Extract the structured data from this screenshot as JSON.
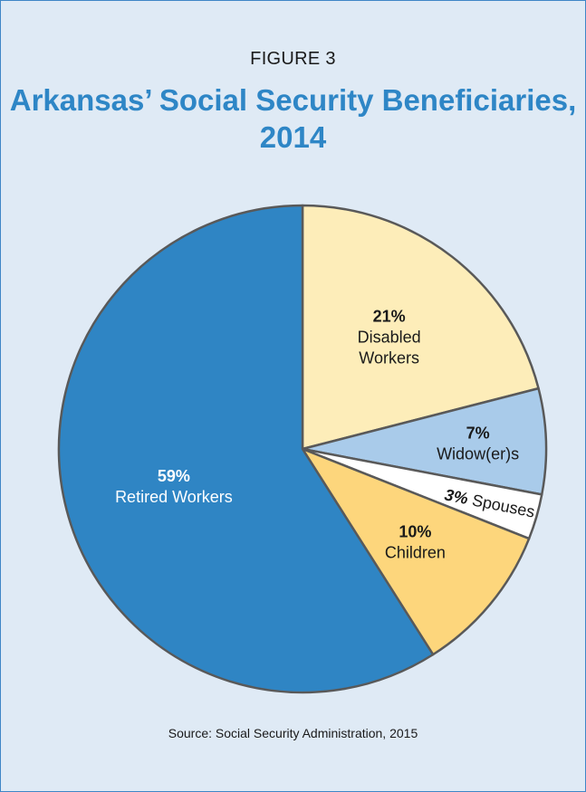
{
  "header": {
    "figure_label": "FIGURE 3",
    "title_line1": "Arkansas’ Social Security Beneficiaries,",
    "title_line2": "2014"
  },
  "footer": {
    "source": "Source: Social Security Administration, 2015"
  },
  "chart_data": {
    "type": "pie",
    "title": "Arkansas’ Social Security Beneficiaries, 2014",
    "slices": [
      {
        "label": "Disabled Workers",
        "pct_label": "21%",
        "value": 21,
        "color": "#fdedb9",
        "text_color": "#1a1a1a"
      },
      {
        "label": "Widow(er)s",
        "pct_label": "7%",
        "value": 7,
        "color": "#a9cbea",
        "text_color": "#1a1a1a"
      },
      {
        "label": "Spouses",
        "pct_label": "3%",
        "value": 3,
        "color": "#ffffff",
        "text_color": "#1a1a1a"
      },
      {
        "label": "Children",
        "pct_label": "10%",
        "value": 10,
        "color": "#fdd67c",
        "text_color": "#1a1a1a"
      },
      {
        "label": "Retired Workers",
        "pct_label": "59%",
        "value": 59,
        "color": "#2f85c4",
        "text_color": "#ffffff"
      }
    ],
    "start_angle_deg": 0,
    "direction": "clockwise",
    "stroke_color": "#595959"
  }
}
